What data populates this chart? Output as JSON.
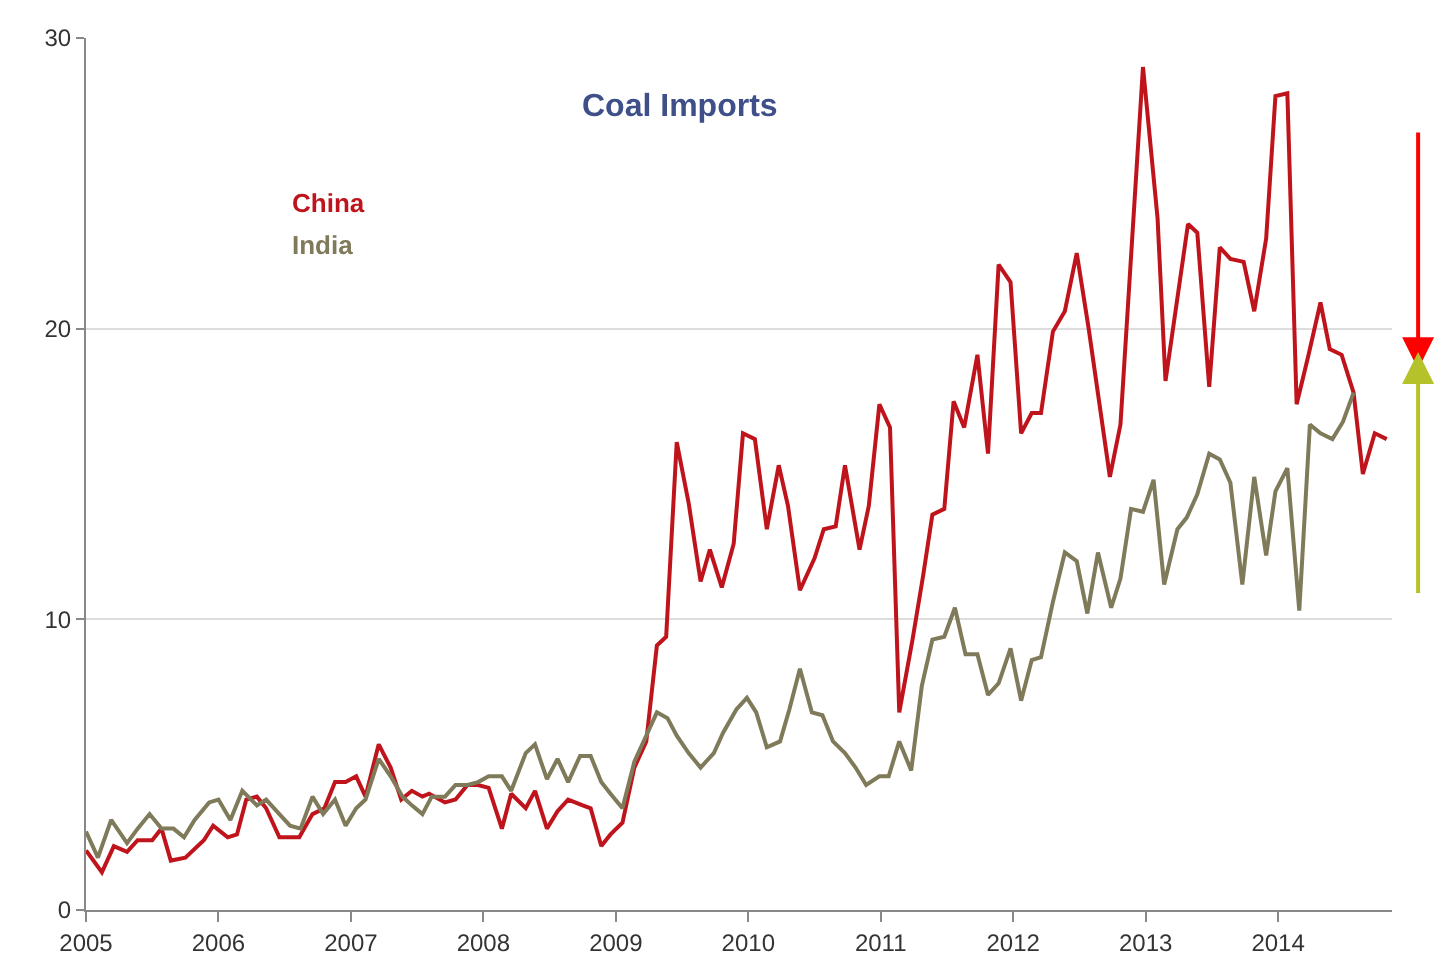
{
  "chart_data": {
    "type": "line",
    "title": "Coal Imports",
    "xlim": [
      2005,
      2014.86
    ],
    "ylim": [
      0,
      30
    ],
    "xticks": [
      2005,
      2006,
      2007,
      2008,
      2009,
      2010,
      2011,
      2012,
      2013,
      2014
    ],
    "yticks": [
      0,
      10,
      20,
      30
    ],
    "grid": "y",
    "marker": "none",
    "line_style": "solid",
    "series": [
      {
        "name": "China",
        "color": "#c0141c",
        "x": [
          2005.0,
          2005.12,
          2005.21,
          2005.31,
          2005.39,
          2005.5,
          2005.57,
          2005.64,
          2005.75,
          2005.89,
          2005.96,
          2006.07,
          2006.14,
          2006.21,
          2006.29,
          2006.36,
          2006.46,
          2006.61,
          2006.71,
          2006.8,
          2006.88,
          2006.96,
          2007.04,
          2007.11,
          2007.21,
          2007.3,
          2007.38,
          2007.46,
          2007.54,
          2007.59,
          2007.71,
          2007.79,
          2007.88,
          2007.96,
          2008.04,
          2008.14,
          2008.21,
          2008.32,
          2008.39,
          2008.48,
          2008.56,
          2008.64,
          2008.75,
          2008.81,
          2008.89,
          2008.96,
          2009.05,
          2009.14,
          2009.23,
          2009.31,
          2009.38,
          2009.46,
          2009.55,
          2009.64,
          2009.71,
          2009.8,
          2009.89,
          2009.96,
          2010.05,
          2010.14,
          2010.23,
          2010.3,
          2010.39,
          2010.5,
          2010.57,
          2010.66,
          2010.73,
          2010.84,
          2010.91,
          2010.99,
          2011.07,
          2011.14,
          2011.24,
          2011.32,
          2011.39,
          2011.48,
          2011.55,
          2011.63,
          2011.73,
          2011.81,
          2011.89,
          2011.98,
          2012.06,
          2012.14,
          2012.21,
          2012.3,
          2012.39,
          2012.48,
          2012.57,
          2012.73,
          2012.81,
          2012.98,
          2013.09,
          2013.15,
          2013.32,
          2013.39,
          2013.48,
          2013.56,
          2013.64,
          2013.74,
          2013.82,
          2013.91,
          2013.98,
          2014.07,
          2014.14,
          2014.23,
          2014.32,
          2014.39,
          2014.48,
          2014.57,
          2014.64,
          2014.73,
          2014.82
        ],
        "values": [
          2.05,
          1.3,
          2.2,
          2.0,
          2.4,
          2.4,
          2.8,
          1.7,
          1.8,
          2.4,
          2.9,
          2.5,
          2.6,
          3.8,
          3.9,
          3.5,
          2.5,
          2.5,
          3.3,
          3.5,
          4.4,
          4.4,
          4.6,
          3.9,
          5.7,
          4.9,
          3.8,
          4.1,
          3.9,
          4.0,
          3.7,
          3.8,
          4.3,
          4.3,
          4.2,
          2.8,
          4.0,
          3.5,
          4.1,
          2.8,
          3.4,
          3.8,
          3.6,
          3.5,
          2.2,
          2.6,
          3.0,
          4.9,
          5.8,
          9.1,
          9.4,
          16.1,
          14.0,
          11.3,
          12.4,
          11.1,
          12.6,
          16.4,
          16.2,
          13.1,
          15.3,
          13.9,
          11.0,
          12.1,
          13.1,
          13.2,
          15.3,
          12.4,
          13.9,
          17.4,
          16.6,
          6.8,
          9.3,
          11.5,
          13.6,
          13.8,
          17.5,
          16.6,
          19.1,
          15.7,
          22.2,
          21.6,
          16.4,
          17.1,
          17.1,
          19.9,
          20.6,
          22.6,
          20.0,
          14.9,
          16.7,
          29.0,
          23.8,
          18.2,
          23.6,
          23.3,
          18.0,
          22.8,
          22.4,
          22.3,
          20.6,
          23.1,
          28.0,
          28.1,
          17.4,
          19.1,
          20.9,
          19.3,
          19.1,
          17.8,
          15.0,
          16.4,
          16.2
        ]
      },
      {
        "name": "India",
        "color": "#7f7a5a",
        "x": [
          2005.0,
          2005.09,
          2005.19,
          2005.31,
          2005.39,
          2005.48,
          2005.57,
          2005.66,
          2005.74,
          2005.82,
          2005.93,
          2006.0,
          2006.09,
          2006.18,
          2006.29,
          2006.36,
          2006.46,
          2006.54,
          2006.62,
          2006.71,
          2006.79,
          2006.88,
          2006.96,
          2007.04,
          2007.11,
          2007.21,
          2007.3,
          2007.39,
          2007.46,
          2007.54,
          2007.61,
          2007.71,
          2007.79,
          2007.88,
          2007.96,
          2008.04,
          2008.14,
          2008.21,
          2008.32,
          2008.39,
          2008.48,
          2008.56,
          2008.64,
          2008.73,
          2008.81,
          2008.89,
          2008.96,
          2009.05,
          2009.14,
          2009.23,
          2009.31,
          2009.39,
          2009.46,
          2009.55,
          2009.64,
          2009.74,
          2009.81,
          2009.91,
          2009.99,
          2010.06,
          2010.14,
          2010.24,
          2010.31,
          2010.39,
          2010.48,
          2010.56,
          2010.64,
          2010.73,
          2010.81,
          2010.89,
          2010.99,
          2011.06,
          2011.14,
          2011.23,
          2011.31,
          2011.39,
          2011.48,
          2011.56,
          2011.64,
          2011.73,
          2011.81,
          2011.89,
          2011.98,
          2012.06,
          2012.14,
          2012.21,
          2012.3,
          2012.39,
          2012.48,
          2012.56,
          2012.64,
          2012.74,
          2012.81,
          2012.89,
          2012.98,
          2013.06,
          2013.14,
          2013.24,
          2013.31,
          2013.39,
          2013.48,
          2013.56,
          2013.64,
          2013.73,
          2013.82,
          2013.91,
          2013.98,
          2014.07,
          2014.16,
          2014.24,
          2014.32,
          2014.41,
          2014.49,
          2014.57
        ],
        "values": [
          2.7,
          1.8,
          3.1,
          2.3,
          2.8,
          3.3,
          2.8,
          2.8,
          2.5,
          3.1,
          3.7,
          3.8,
          3.1,
          4.1,
          3.6,
          3.8,
          3.3,
          2.9,
          2.8,
          3.9,
          3.3,
          3.8,
          2.9,
          3.5,
          3.8,
          5.2,
          4.6,
          3.9,
          3.6,
          3.3,
          3.9,
          3.9,
          4.3,
          4.3,
          4.4,
          4.6,
          4.6,
          4.1,
          5.4,
          5.7,
          4.5,
          5.2,
          4.4,
          5.3,
          5.3,
          4.4,
          4.0,
          3.5,
          5.1,
          6.0,
          6.8,
          6.6,
          6.0,
          5.4,
          4.9,
          5.4,
          6.1,
          6.9,
          7.3,
          6.8,
          5.6,
          5.8,
          6.9,
          8.3,
          6.8,
          6.7,
          5.8,
          5.4,
          4.9,
          4.3,
          4.6,
          4.6,
          5.8,
          4.8,
          7.7,
          9.3,
          9.4,
          10.4,
          8.8,
          8.8,
          7.4,
          7.8,
          9.0,
          7.2,
          8.6,
          8.7,
          10.6,
          12.3,
          12.0,
          10.2,
          12.3,
          10.4,
          11.4,
          13.8,
          13.7,
          14.8,
          11.2,
          13.1,
          13.5,
          14.3,
          15.7,
          15.5,
          14.7,
          11.2,
          14.9,
          12.2,
          14.4,
          15.2,
          10.3,
          16.7,
          16.4,
          16.2,
          16.8,
          17.8
        ]
      }
    ]
  }
}
